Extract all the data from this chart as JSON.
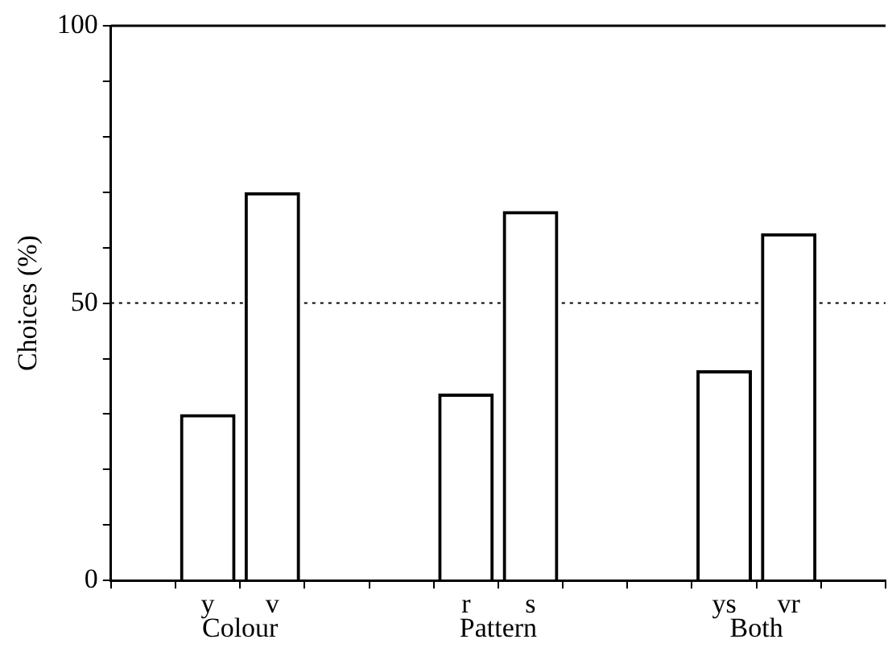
{
  "chart_data": {
    "type": "bar",
    "ylabel": "Choices (%)",
    "categories": [
      null,
      "y",
      "v",
      null,
      null,
      "r",
      "s",
      null,
      null,
      "ys",
      "vr",
      null
    ],
    "values": [
      null,
      30,
      70,
      null,
      null,
      33.7,
      66.6,
      null,
      null,
      37.9,
      62.6,
      null
    ],
    "color": "#000000",
    "ylim": [
      0,
      100
    ],
    "yticks": [
      0,
      {
        "value": 10,
        "label": null
      },
      {
        "value": 20,
        "label": null
      },
      {
        "value": 30,
        "label": null
      },
      {
        "value": 40,
        "label": null
      },
      50,
      {
        "value": 60,
        "label": null
      },
      {
        "value": 70,
        "label": null
      },
      {
        "value": 80,
        "label": null
      },
      {
        "value": 90,
        "label": null
      },
      100
    ],
    "annotations": [
      "Colour",
      "Pattern",
      "Both"
    ],
    "ref_lines": [
      {
        "axis": "y",
        "value": 50,
        "line_style": "dotted",
        "color": "#000000"
      }
    ],
    "grid": false,
    "legend": false
  }
}
